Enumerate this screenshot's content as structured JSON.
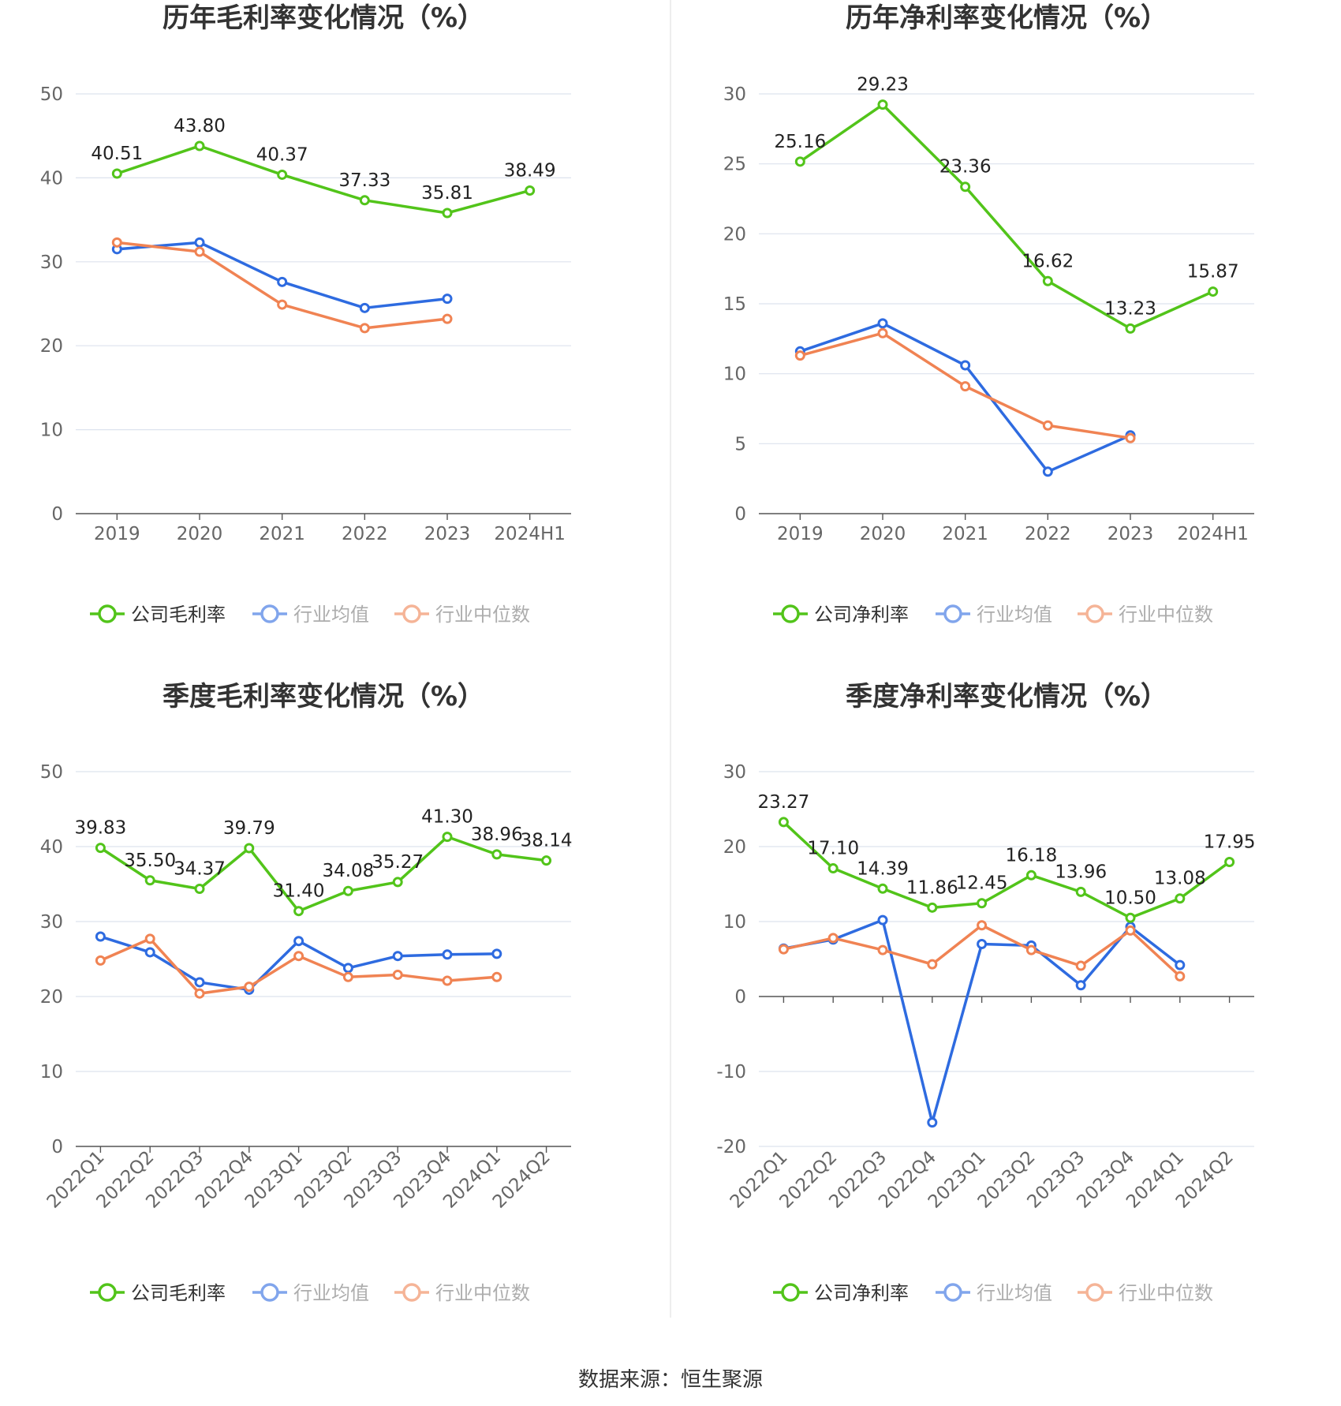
{
  "source_text": "数据来源：恒生聚源",
  "colors": {
    "company": "#52c41a",
    "avg": "#2e6be0",
    "median": "#f08353",
    "grid": "#dde3ee",
    "axis": "#666666",
    "title": "#333333",
    "label": "#222222"
  },
  "chart_data": [
    {
      "type": "line",
      "title": "历年毛利率变化情况（%）",
      "categories": [
        "2019",
        "2020",
        "2021",
        "2022",
        "2023",
        "2024H1"
      ],
      "ylim": [
        0,
        50
      ],
      "yticks": [
        "0",
        "10",
        "20",
        "30",
        "40",
        "50"
      ],
      "grid": true,
      "legend_position": "bottom",
      "x_label_rotate": false,
      "series": [
        {
          "name": "公司毛利率",
          "role": "company",
          "values": [
            40.51,
            43.8,
            40.37,
            37.33,
            35.81,
            38.49
          ],
          "labels": [
            "40.51",
            "43.80",
            "40.37",
            "37.33",
            "35.81",
            "38.49"
          ]
        },
        {
          "name": "行业均值",
          "role": "avg",
          "values": [
            31.5,
            32.3,
            27.6,
            24.5,
            25.6,
            null
          ]
        },
        {
          "name": "行业中位数",
          "role": "median",
          "values": [
            32.3,
            31.2,
            24.9,
            22.1,
            23.2,
            null
          ]
        }
      ]
    },
    {
      "type": "line",
      "title": "历年净利率变化情况（%）",
      "categories": [
        "2019",
        "2020",
        "2021",
        "2022",
        "2023",
        "2024H1"
      ],
      "ylim": [
        0,
        30
      ],
      "yticks": [
        "0",
        "5",
        "10",
        "15",
        "20",
        "25",
        "30"
      ],
      "grid": true,
      "legend_position": "bottom",
      "x_label_rotate": false,
      "series": [
        {
          "name": "公司净利率",
          "role": "company",
          "values": [
            25.16,
            29.23,
            23.36,
            16.62,
            13.23,
            15.87
          ],
          "labels": [
            "25.16",
            "29.23",
            "23.36",
            "16.62",
            "13.23",
            "15.87"
          ]
        },
        {
          "name": "行业均值",
          "role": "avg",
          "values": [
            11.6,
            13.6,
            10.6,
            3.0,
            5.6,
            null
          ]
        },
        {
          "name": "行业中位数",
          "role": "median",
          "values": [
            11.3,
            12.9,
            9.1,
            6.3,
            5.4,
            null
          ]
        }
      ]
    },
    {
      "type": "line",
      "title": "季度毛利率变化情况（%）",
      "categories": [
        "2022Q1",
        "2022Q2",
        "2022Q3",
        "2022Q4",
        "2023Q1",
        "2023Q2",
        "2023Q3",
        "2023Q4",
        "2024Q1",
        "2024Q2"
      ],
      "ylim": [
        0,
        50
      ],
      "yticks": [
        "0",
        "10",
        "20",
        "30",
        "40",
        "50"
      ],
      "grid": true,
      "legend_position": "bottom",
      "x_label_rotate": true,
      "series": [
        {
          "name": "公司毛利率",
          "role": "company",
          "values": [
            39.83,
            35.5,
            34.37,
            39.79,
            31.4,
            34.08,
            35.27,
            41.3,
            38.96,
            38.14
          ],
          "labels": [
            "39.83",
            "35.50",
            "34.37",
            "39.79",
            "31.40",
            "34.08",
            "35.27",
            "41.30",
            "38.96",
            "38.14"
          ]
        },
        {
          "name": "行业均值",
          "role": "avg",
          "values": [
            28.0,
            25.9,
            21.9,
            20.9,
            27.4,
            23.8,
            25.4,
            25.6,
            25.7,
            null
          ]
        },
        {
          "name": "行业中位数",
          "role": "median",
          "values": [
            24.8,
            27.7,
            20.4,
            21.3,
            25.4,
            22.6,
            22.9,
            22.1,
            22.6,
            null
          ]
        }
      ]
    },
    {
      "type": "line",
      "title": "季度净利率变化情况（%）",
      "categories": [
        "2022Q1",
        "2022Q2",
        "2022Q3",
        "2022Q4",
        "2023Q1",
        "2023Q2",
        "2023Q3",
        "2023Q4",
        "2024Q1",
        "2024Q2"
      ],
      "ylim": [
        -20,
        30
      ],
      "yticks": [
        "-20",
        "-10",
        "0",
        "10",
        "20",
        "30"
      ],
      "grid": true,
      "legend_position": "bottom",
      "x_label_rotate": true,
      "series": [
        {
          "name": "公司净利率",
          "role": "company",
          "values": [
            23.27,
            17.1,
            14.39,
            11.86,
            12.45,
            16.18,
            13.96,
            10.5,
            13.08,
            17.95
          ],
          "labels": [
            "23.27",
            "17.10",
            "14.39",
            "11.86",
            "12.45",
            "16.18",
            "13.96",
            "10.50",
            "13.08",
            "17.95"
          ]
        },
        {
          "name": "行业均值",
          "role": "avg",
          "values": [
            6.4,
            7.6,
            10.2,
            -16.8,
            7.0,
            6.8,
            1.5,
            9.3,
            4.2,
            null
          ]
        },
        {
          "name": "行业中位数",
          "role": "median",
          "values": [
            6.3,
            7.8,
            6.2,
            4.3,
            9.5,
            6.2,
            4.1,
            8.8,
            2.7,
            null
          ]
        }
      ]
    }
  ]
}
